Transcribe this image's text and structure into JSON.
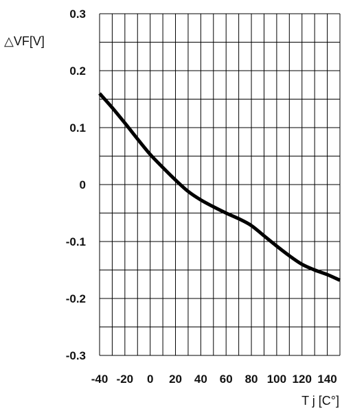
{
  "chart_data": {
    "type": "line",
    "title": "",
    "xlabel": "T j [C°]",
    "ylabel": "△VF[V]",
    "xlim": [
      -40,
      150
    ],
    "ylim": [
      -0.3,
      0.3
    ],
    "x_tick_labels": [
      "-40",
      "-20",
      "0",
      "20",
      "40",
      "60",
      "80",
      "100",
      "120",
      "140"
    ],
    "y_tick_labels": [
      "0.3",
      "0.2",
      "0.1",
      "0",
      "-0.1",
      "-0.2",
      "-0.3"
    ],
    "x_ticks": [
      -40,
      -20,
      0,
      20,
      40,
      60,
      80,
      100,
      120,
      140
    ],
    "y_ticks": [
      0.3,
      0.2,
      0.1,
      0,
      -0.1,
      -0.2,
      -0.3
    ],
    "x_grid_step": 10,
    "y_grid_step": 0.05,
    "grid": true,
    "series": [
      {
        "color": "#000000",
        "x": [
          -40,
          -30,
          -20,
          -10,
          0,
          10,
          20,
          30,
          40,
          50,
          60,
          70,
          80,
          90,
          100,
          110,
          120,
          130,
          140,
          150
        ],
        "y": [
          0.16,
          0.135,
          0.108,
          0.08,
          0.053,
          0.03,
          0.008,
          -0.012,
          -0.027,
          -0.039,
          -0.05,
          -0.06,
          -0.072,
          -0.09,
          -0.108,
          -0.125,
          -0.14,
          -0.15,
          -0.158,
          -0.168
        ]
      }
    ]
  }
}
